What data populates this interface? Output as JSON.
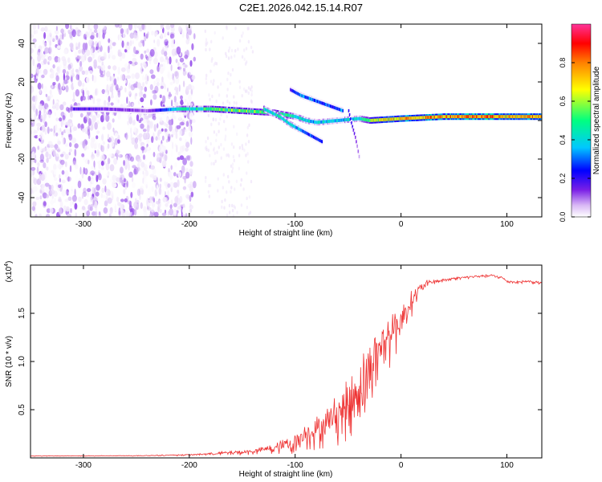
{
  "title": "C2E1.2026.042.15.14.R07",
  "chart_data": [
    {
      "type": "heatmap",
      "name": "spectrogram",
      "xlabel": "Height of straight line (km)",
      "ylabel": "Frequency (Hz)",
      "xlim": [
        -350,
        133
      ],
      "ylim": [
        -50,
        50
      ],
      "xticks": [
        -300,
        -200,
        -100,
        0,
        100
      ],
      "xtick_labels": [
        "-300",
        "-200",
        "-100",
        "0",
        "100"
      ],
      "yticks": [
        -40,
        -20,
        0,
        20,
        40
      ],
      "ytick_labels": [
        "-40",
        "-20",
        "0",
        "20",
        "40"
      ],
      "colorbar": {
        "label": "Normalized spectral amplitude",
        "range": [
          0,
          1
        ],
        "ticks": [
          0.0,
          0.2,
          0.4,
          0.6,
          0.8
        ],
        "tick_labels": [
          "0.0",
          "0.2",
          "0.4",
          "0.6",
          "0.8"
        ],
        "colormap": [
          "#ffffff",
          "#e8d8f8",
          "#7a1fe6",
          "#0000ff",
          "#00c8ff",
          "#00ff80",
          "#ffff00",
          "#ff8000",
          "#ff0000",
          "#ff2a8a"
        ]
      },
      "tracks": [
        {
          "name": "main-tone",
          "x": [
            -310,
            -280,
            -240,
            -210,
            -180,
            -150,
            -120,
            -100,
            -90,
            -80,
            -60,
            -40,
            -30,
            0,
            40,
            80,
            100,
            133
          ],
          "y": [
            6,
            6,
            5,
            6,
            6,
            5,
            4,
            2,
            0,
            -1,
            0,
            1,
            0,
            1,
            2,
            2,
            2,
            2
          ],
          "amplitude": [
            0.3,
            0.25,
            0.2,
            0.55,
            0.6,
            0.65,
            0.6,
            0.55,
            0.5,
            0.5,
            0.5,
            0.55,
            0.7,
            0.8,
            0.85,
            0.9,
            0.8,
            0.85
          ]
        },
        {
          "name": "descending-branch",
          "x": [
            -130,
            -115,
            -105,
            -95,
            -85,
            -75
          ],
          "y": [
            6,
            2,
            -2,
            -5,
            -8,
            -11
          ],
          "amplitude": [
            0.55,
            0.55,
            0.5,
            0.45,
            0.4,
            0.35
          ]
        },
        {
          "name": "upper-branch",
          "x": [
            -105,
            -95,
            -85,
            -75,
            -65,
            -55
          ],
          "y": [
            16,
            13,
            11,
            9,
            7,
            5
          ],
          "amplitude": [
            0.3,
            0.45,
            0.45,
            0.4,
            0.4,
            0.45
          ]
        },
        {
          "name": "falling-streak",
          "x": [
            -50,
            -47,
            -44,
            -42,
            -40
          ],
          "y": [
            5,
            -2,
            -8,
            -13,
            -19
          ],
          "amplitude": [
            0.3,
            0.3,
            0.25,
            0.2,
            0.15
          ]
        }
      ],
      "noise_region": {
        "x_from": -350,
        "x_to": -195,
        "amplitude_max": 0.2
      }
    },
    {
      "type": "line",
      "name": "snr",
      "xlabel": "Height of straight line (km)",
      "ylabel": "SNR (10 * v/v)",
      "scale_label": "(x10",
      "scale_exp": "4",
      "scale_close": ")",
      "xlim": [
        -350,
        133
      ],
      "ylim": [
        0,
        20000
      ],
      "xticks": [
        -300,
        -200,
        -100,
        0,
        100
      ],
      "xtick_labels": [
        "-300",
        "-200",
        "-100",
        "0",
        "100"
      ],
      "yticks": [
        5000,
        10000,
        15000
      ],
      "ytick_labels": [
        "0.5",
        "1.0",
        "1.5"
      ],
      "color": "#ee3333",
      "series": [
        {
          "name": "SNR",
          "x": [
            -350,
            -300,
            -250,
            -200,
            -180,
            -160,
            -140,
            -120,
            -110,
            -100,
            -90,
            -80,
            -70,
            -60,
            -50,
            -45,
            -40,
            -35,
            -30,
            -25,
            -20,
            -15,
            -10,
            -5,
            0,
            5,
            10,
            15,
            20,
            25,
            30,
            40,
            50,
            60,
            70,
            80,
            85,
            90,
            95,
            100,
            110,
            120,
            133
          ],
          "y": [
            200,
            200,
            220,
            300,
            400,
            500,
            600,
            900,
            1200,
            1500,
            2200,
            2600,
            3200,
            4000,
            5000,
            5600,
            6500,
            7500,
            8500,
            9700,
            10500,
            11500,
            12500,
            13000,
            14000,
            15000,
            16000,
            17000,
            17500,
            18000,
            18200,
            18400,
            18600,
            18700,
            18800,
            18850,
            18900,
            18800,
            18700,
            18300,
            18200,
            18300,
            18100
          ],
          "noise": [
            30,
            30,
            40,
            80,
            150,
            250,
            300,
            600,
            800,
            1100,
            1500,
            1800,
            2200,
            2800,
            3200,
            3500,
            3800,
            4000,
            4000,
            3800,
            3500,
            3200,
            3000,
            2600,
            2200,
            1800,
            1400,
            1000,
            700,
            500,
            300,
            200,
            150,
            150,
            150,
            150,
            150,
            150,
            150,
            150,
            150,
            150,
            150
          ]
        }
      ]
    }
  ]
}
